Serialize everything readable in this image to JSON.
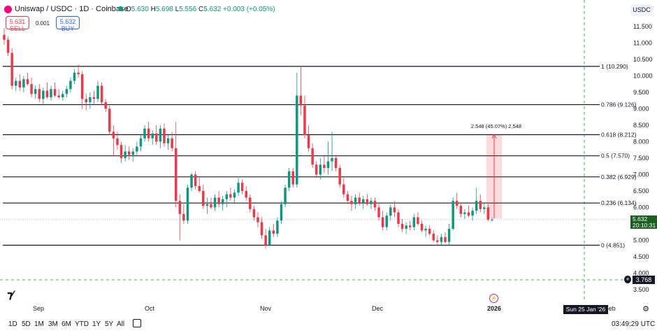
{
  "header": {
    "title": "Uniswap / USDC · 1D · Coinbase",
    "ohlc": {
      "o_label": "O",
      "o": "5.630",
      "h_label": "H",
      "h": "5.698",
      "l_label": "L",
      "l": "5.556",
      "c_label": "C",
      "c": "5.632",
      "change": "+0.003 (+0.05%)"
    },
    "sell_price": "5.631",
    "sell_label": "SELL",
    "spread": "0.001",
    "buy_price": "5.632",
    "buy_label": "BUY"
  },
  "currency_button": "USDC",
  "price_tag": {
    "price": "5.632",
    "countdown": "20:10:31"
  },
  "cursor_price": "3.768",
  "cursor_date": "Sun 25 Jan '26",
  "measure_label": "2.548 (45.07%) 2,548",
  "bottom_bar": {
    "timeframes": [
      "1D",
      "5D",
      "1M",
      "3M",
      "6M",
      "YTD",
      "1Y",
      "5Y",
      "All"
    ],
    "clock": "03:49:29 UTC"
  },
  "colors": {
    "up": "#089981",
    "down": "#f23645",
    "grid_line": "#131722",
    "measure": "#f23645",
    "price_tag": "#1b5e20"
  },
  "chart_data": {
    "type": "candlestick",
    "title": "Uniswap / USDC · 1D · Coinbase",
    "y_range": [
      3.2,
      11.9
    ],
    "y_ticks": [
      "11.500",
      "11.000",
      "10.500",
      "10.000",
      "9.500",
      "9.000",
      "8.500",
      "8.000",
      "7.500",
      "7.000",
      "6.500",
      "6.000",
      "5.500",
      "5.000",
      "4.500",
      "4.000",
      "3.500"
    ],
    "x_labels": [
      "Sep",
      "Oct",
      "Nov",
      "Dec",
      "2026",
      "Feb"
    ],
    "fib_levels": [
      {
        "ratio": "1",
        "value": 10.29,
        "label": "1 (10.290)"
      },
      {
        "ratio": "0.786",
        "value": 9.126,
        "label": "0.786 (9.126)"
      },
      {
        "ratio": "0.618",
        "value": 8.212,
        "label": "0.618 (8.212)"
      },
      {
        "ratio": "0.5",
        "value": 7.57,
        "label": "0.5 (7.570)"
      },
      {
        "ratio": "0.382",
        "value": 6.929,
        "label": "0.382 (6.929)"
      },
      {
        "ratio": "0.236",
        "value": 6.134,
        "label": "0.236 (6.134)"
      },
      {
        "ratio": "0",
        "value": 4.851,
        "label": "0 (4.851)"
      }
    ],
    "candles": [
      {
        "o": 11.25,
        "h": 11.45,
        "l": 10.95,
        "c": 11.1
      },
      {
        "o": 11.1,
        "h": 11.2,
        "l": 10.6,
        "c": 10.7
      },
      {
        "o": 10.7,
        "h": 10.85,
        "l": 9.6,
        "c": 9.7
      },
      {
        "o": 9.7,
        "h": 9.95,
        "l": 9.55,
        "c": 9.85
      },
      {
        "o": 9.85,
        "h": 10.05,
        "l": 9.55,
        "c": 9.65
      },
      {
        "o": 9.65,
        "h": 10.0,
        "l": 9.5,
        "c": 9.9
      },
      {
        "o": 9.9,
        "h": 10.1,
        "l": 9.7,
        "c": 9.75
      },
      {
        "o": 9.75,
        "h": 9.95,
        "l": 9.35,
        "c": 9.45
      },
      {
        "o": 9.45,
        "h": 9.7,
        "l": 9.3,
        "c": 9.6
      },
      {
        "o": 9.6,
        "h": 9.75,
        "l": 9.2,
        "c": 9.3
      },
      {
        "o": 9.3,
        "h": 9.65,
        "l": 9.1,
        "c": 9.55
      },
      {
        "o": 9.55,
        "h": 9.8,
        "l": 9.3,
        "c": 9.35
      },
      {
        "o": 9.35,
        "h": 9.7,
        "l": 9.25,
        "c": 9.6
      },
      {
        "o": 9.6,
        "h": 9.8,
        "l": 9.35,
        "c": 9.4
      },
      {
        "o": 9.4,
        "h": 9.6,
        "l": 9.3,
        "c": 9.35
      },
      {
        "o": 9.35,
        "h": 9.55,
        "l": 9.25,
        "c": 9.45
      },
      {
        "o": 9.45,
        "h": 9.7,
        "l": 9.35,
        "c": 9.6
      },
      {
        "o": 9.6,
        "h": 9.95,
        "l": 9.5,
        "c": 9.85
      },
      {
        "o": 9.85,
        "h": 10.2,
        "l": 9.75,
        "c": 10.1
      },
      {
        "o": 10.1,
        "h": 10.35,
        "l": 9.95,
        "c": 10.05
      },
      {
        "o": 10.05,
        "h": 10.15,
        "l": 9.0,
        "c": 9.3
      },
      {
        "o": 9.3,
        "h": 9.45,
        "l": 8.95,
        "c": 9.2
      },
      {
        "o": 9.2,
        "h": 9.5,
        "l": 9.0,
        "c": 9.35
      },
      {
        "o": 9.35,
        "h": 9.55,
        "l": 9.15,
        "c": 9.3
      },
      {
        "o": 9.3,
        "h": 9.85,
        "l": 9.2,
        "c": 9.7
      },
      {
        "o": 9.7,
        "h": 9.8,
        "l": 9.1,
        "c": 9.2
      },
      {
        "o": 9.2,
        "h": 9.3,
        "l": 8.9,
        "c": 9.0
      },
      {
        "o": 9.0,
        "h": 9.1,
        "l": 8.2,
        "c": 8.3
      },
      {
        "o": 8.3,
        "h": 8.5,
        "l": 7.55,
        "c": 8.1
      },
      {
        "o": 8.1,
        "h": 8.3,
        "l": 7.75,
        "c": 7.9
      },
      {
        "o": 7.9,
        "h": 8.0,
        "l": 7.35,
        "c": 7.5
      },
      {
        "o": 7.5,
        "h": 7.9,
        "l": 7.4,
        "c": 7.7
      },
      {
        "o": 7.7,
        "h": 7.85,
        "l": 7.45,
        "c": 7.6
      },
      {
        "o": 7.6,
        "h": 7.8,
        "l": 7.4,
        "c": 7.7
      },
      {
        "o": 7.7,
        "h": 8.0,
        "l": 7.6,
        "c": 7.85
      },
      {
        "o": 7.85,
        "h": 8.2,
        "l": 7.7,
        "c": 8.1
      },
      {
        "o": 8.1,
        "h": 8.5,
        "l": 8.0,
        "c": 8.4
      },
      {
        "o": 8.4,
        "h": 8.6,
        "l": 8.0,
        "c": 8.1
      },
      {
        "o": 8.1,
        "h": 8.35,
        "l": 7.9,
        "c": 8.25
      },
      {
        "o": 8.25,
        "h": 8.5,
        "l": 7.9,
        "c": 8.0
      },
      {
        "o": 8.0,
        "h": 8.5,
        "l": 7.8,
        "c": 8.4
      },
      {
        "o": 8.4,
        "h": 8.55,
        "l": 7.85,
        "c": 7.95
      },
      {
        "o": 7.95,
        "h": 8.2,
        "l": 7.75,
        "c": 8.1
      },
      {
        "o": 8.1,
        "h": 8.3,
        "l": 7.7,
        "c": 7.8
      },
      {
        "o": 7.8,
        "h": 8.6,
        "l": 6.0,
        "c": 6.2
      },
      {
        "o": 6.2,
        "h": 6.4,
        "l": 5.0,
        "c": 5.8
      },
      {
        "o": 5.8,
        "h": 6.1,
        "l": 5.5,
        "c": 5.6
      },
      {
        "o": 5.6,
        "h": 6.7,
        "l": 5.5,
        "c": 6.6
      },
      {
        "o": 6.6,
        "h": 7.05,
        "l": 6.5,
        "c": 7.0
      },
      {
        "o": 7.0,
        "h": 7.1,
        "l": 6.55,
        "c": 6.65
      },
      {
        "o": 6.65,
        "h": 6.9,
        "l": 6.45,
        "c": 6.5
      },
      {
        "o": 6.5,
        "h": 6.7,
        "l": 5.95,
        "c": 6.05
      },
      {
        "o": 6.05,
        "h": 6.3,
        "l": 5.8,
        "c": 6.1
      },
      {
        "o": 6.1,
        "h": 6.3,
        "l": 5.95,
        "c": 6.0
      },
      {
        "o": 6.0,
        "h": 6.4,
        "l": 5.9,
        "c": 6.3
      },
      {
        "o": 6.3,
        "h": 6.5,
        "l": 6.0,
        "c": 6.1
      },
      {
        "o": 6.1,
        "h": 6.35,
        "l": 5.9,
        "c": 6.25
      },
      {
        "o": 6.25,
        "h": 6.5,
        "l": 6.0,
        "c": 6.4
      },
      {
        "o": 6.4,
        "h": 6.6,
        "l": 6.2,
        "c": 6.3
      },
      {
        "o": 6.3,
        "h": 6.55,
        "l": 6.1,
        "c": 6.45
      },
      {
        "o": 6.45,
        "h": 6.9,
        "l": 6.35,
        "c": 6.75
      },
      {
        "o": 6.75,
        "h": 6.85,
        "l": 6.4,
        "c": 6.5
      },
      {
        "o": 6.5,
        "h": 6.65,
        "l": 6.2,
        "c": 6.3
      },
      {
        "o": 6.3,
        "h": 6.4,
        "l": 5.85,
        "c": 5.95
      },
      {
        "o": 5.95,
        "h": 6.05,
        "l": 5.6,
        "c": 5.7
      },
      {
        "o": 5.7,
        "h": 5.85,
        "l": 5.4,
        "c": 5.55
      },
      {
        "o": 5.55,
        "h": 5.7,
        "l": 5.05,
        "c": 5.15
      },
      {
        "o": 5.15,
        "h": 5.35,
        "l": 4.75,
        "c": 4.85
      },
      {
        "o": 4.85,
        "h": 5.4,
        "l": 4.8,
        "c": 5.3
      },
      {
        "o": 5.3,
        "h": 5.5,
        "l": 5.1,
        "c": 5.2
      },
      {
        "o": 5.2,
        "h": 5.7,
        "l": 5.1,
        "c": 5.6
      },
      {
        "o": 5.6,
        "h": 6.2,
        "l": 5.5,
        "c": 6.1
      },
      {
        "o": 6.1,
        "h": 6.7,
        "l": 6.0,
        "c": 6.6
      },
      {
        "o": 6.6,
        "h": 7.2,
        "l": 6.5,
        "c": 7.1
      },
      {
        "o": 7.1,
        "h": 7.2,
        "l": 6.6,
        "c": 6.7
      },
      {
        "o": 6.7,
        "h": 10.1,
        "l": 6.6,
        "c": 9.4
      },
      {
        "o": 9.4,
        "h": 10.3,
        "l": 8.8,
        "c": 9.1
      },
      {
        "o": 9.1,
        "h": 9.4,
        "l": 8.1,
        "c": 8.2
      },
      {
        "o": 8.2,
        "h": 8.5,
        "l": 7.7,
        "c": 7.8
      },
      {
        "o": 7.8,
        "h": 7.95,
        "l": 7.2,
        "c": 7.3
      },
      {
        "o": 7.3,
        "h": 7.4,
        "l": 6.9,
        "c": 7.0
      },
      {
        "o": 7.0,
        "h": 7.5,
        "l": 6.85,
        "c": 7.3
      },
      {
        "o": 7.3,
        "h": 7.6,
        "l": 7.05,
        "c": 7.2
      },
      {
        "o": 7.2,
        "h": 8.0,
        "l": 7.0,
        "c": 7.4
      },
      {
        "o": 7.4,
        "h": 8.3,
        "l": 7.1,
        "c": 7.5
      },
      {
        "o": 7.5,
        "h": 7.6,
        "l": 7.1,
        "c": 7.2
      },
      {
        "o": 7.2,
        "h": 7.3,
        "l": 6.6,
        "c": 6.7
      },
      {
        "o": 6.7,
        "h": 6.9,
        "l": 6.3,
        "c": 6.4
      },
      {
        "o": 6.4,
        "h": 6.5,
        "l": 6.1,
        "c": 6.2
      },
      {
        "o": 6.2,
        "h": 6.35,
        "l": 5.9,
        "c": 6.1
      },
      {
        "o": 6.1,
        "h": 6.4,
        "l": 5.95,
        "c": 6.3
      },
      {
        "o": 6.3,
        "h": 6.45,
        "l": 6.05,
        "c": 6.15
      },
      {
        "o": 6.15,
        "h": 6.35,
        "l": 5.95,
        "c": 6.25
      },
      {
        "o": 6.25,
        "h": 6.4,
        "l": 6.05,
        "c": 6.1
      },
      {
        "o": 6.1,
        "h": 6.3,
        "l": 5.95,
        "c": 6.2
      },
      {
        "o": 6.2,
        "h": 6.3,
        "l": 5.9,
        "c": 6.0
      },
      {
        "o": 6.0,
        "h": 6.15,
        "l": 5.6,
        "c": 5.7
      },
      {
        "o": 5.7,
        "h": 5.9,
        "l": 5.3,
        "c": 5.4
      },
      {
        "o": 5.4,
        "h": 5.85,
        "l": 5.3,
        "c": 5.75
      },
      {
        "o": 5.75,
        "h": 6.1,
        "l": 5.6,
        "c": 6.0
      },
      {
        "o": 6.0,
        "h": 6.2,
        "l": 5.7,
        "c": 5.85
      },
      {
        "o": 5.85,
        "h": 5.95,
        "l": 5.4,
        "c": 5.5
      },
      {
        "o": 5.5,
        "h": 5.65,
        "l": 5.25,
        "c": 5.35
      },
      {
        "o": 5.35,
        "h": 5.55,
        "l": 5.2,
        "c": 5.45
      },
      {
        "o": 5.45,
        "h": 5.6,
        "l": 5.3,
        "c": 5.4
      },
      {
        "o": 5.4,
        "h": 5.8,
        "l": 5.3,
        "c": 5.7
      },
      {
        "o": 5.7,
        "h": 5.85,
        "l": 5.45,
        "c": 5.5
      },
      {
        "o": 5.5,
        "h": 5.6,
        "l": 5.25,
        "c": 5.3
      },
      {
        "o": 5.3,
        "h": 5.45,
        "l": 5.1,
        "c": 5.35
      },
      {
        "o": 5.35,
        "h": 5.45,
        "l": 5.15,
        "c": 5.2
      },
      {
        "o": 5.2,
        "h": 5.3,
        "l": 4.95,
        "c": 5.0
      },
      {
        "o": 5.0,
        "h": 5.15,
        "l": 4.88,
        "c": 4.95
      },
      {
        "o": 4.95,
        "h": 5.2,
        "l": 4.85,
        "c": 5.1
      },
      {
        "o": 5.1,
        "h": 5.25,
        "l": 4.9,
        "c": 4.95
      },
      {
        "o": 4.95,
        "h": 5.5,
        "l": 4.85,
        "c": 5.35
      },
      {
        "o": 5.35,
        "h": 6.3,
        "l": 5.3,
        "c": 6.2
      },
      {
        "o": 6.2,
        "h": 6.45,
        "l": 5.95,
        "c": 6.05
      },
      {
        "o": 6.05,
        "h": 6.15,
        "l": 5.7,
        "c": 5.8
      },
      {
        "o": 5.8,
        "h": 5.95,
        "l": 5.65,
        "c": 5.85
      },
      {
        "o": 5.85,
        "h": 6.05,
        "l": 5.7,
        "c": 5.75
      },
      {
        "o": 5.75,
        "h": 6.0,
        "l": 5.6,
        "c": 5.9
      },
      {
        "o": 5.9,
        "h": 6.6,
        "l": 5.8,
        "c": 6.2
      },
      {
        "o": 6.2,
        "h": 6.4,
        "l": 5.85,
        "c": 5.95
      },
      {
        "o": 5.95,
        "h": 6.15,
        "l": 5.8,
        "c": 6.0
      },
      {
        "o": 6.0,
        "h": 6.1,
        "l": 5.58,
        "c": 5.63
      },
      {
        "o": 5.63,
        "h": 5.7,
        "l": 5.56,
        "c": 5.632
      }
    ],
    "last_price": 5.632,
    "measure": {
      "from": 5.664,
      "to": 8.212,
      "change": 2.548,
      "percent": 45.07
    }
  }
}
